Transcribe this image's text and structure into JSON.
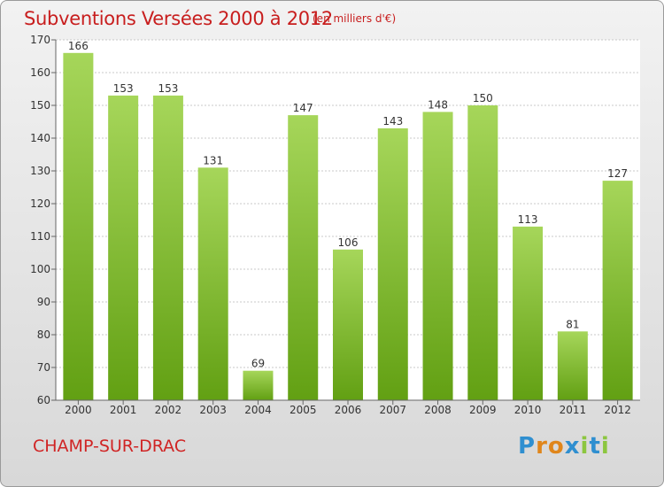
{
  "header": {
    "title": "Subventions Versées 2000 à 2012",
    "unit": "(en milliers d'€)"
  },
  "footer": {
    "commune": "CHAMP-SUR-DRAC"
  },
  "logo": {
    "letters": [
      "P",
      "r",
      "o",
      "x",
      "i",
      "t",
      "i"
    ],
    "colors": [
      "#2f8fd0",
      "#e0861b",
      "#e0861b",
      "#2f8fd0",
      "#8cc63f",
      "#2f8fd0",
      "#8cc63f"
    ]
  },
  "colors": {
    "bar_top": "#a6d65a",
    "bar_bottom": "#62a013",
    "title": "#c81e1e"
  },
  "chart_data": {
    "type": "bar",
    "title": "Subventions Versées 2000 à 2012",
    "subtitle": "(en milliers d'€)",
    "categories": [
      "2000",
      "2001",
      "2002",
      "2003",
      "2004",
      "2005",
      "2006",
      "2007",
      "2008",
      "2009",
      "2010",
      "2011",
      "2012"
    ],
    "values": [
      166,
      153,
      153,
      131,
      69,
      147,
      106,
      143,
      148,
      150,
      113,
      81,
      127
    ],
    "ylim": [
      60,
      170
    ],
    "yticks": [
      60,
      70,
      80,
      90,
      100,
      110,
      120,
      130,
      140,
      150,
      160,
      170
    ],
    "grid": true,
    "xlabel": "",
    "ylabel": ""
  }
}
